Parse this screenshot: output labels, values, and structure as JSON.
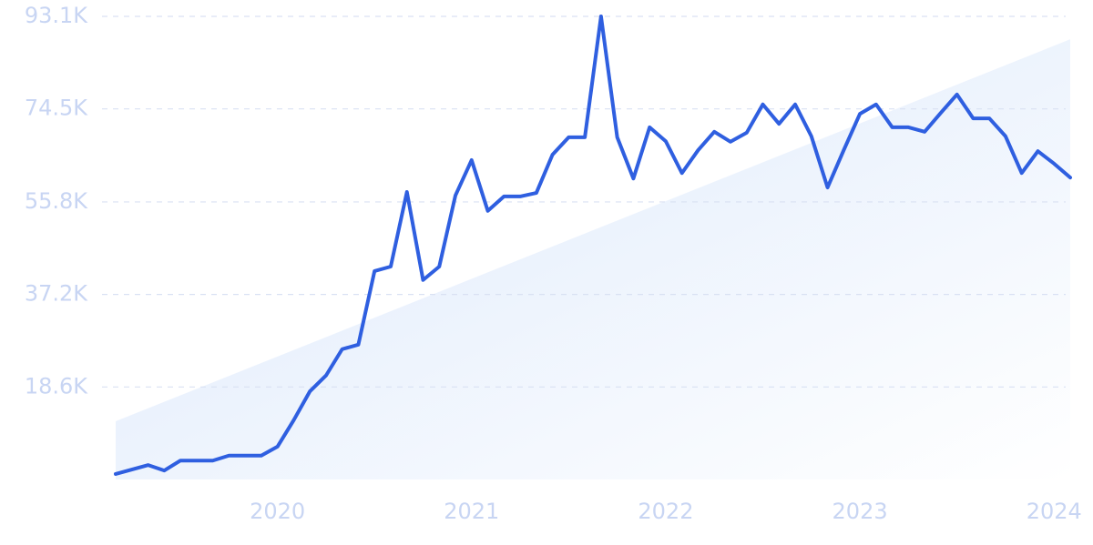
{
  "chart_data": {
    "type": "line",
    "categories": [
      null,
      null,
      null,
      null,
      null,
      null,
      null,
      null,
      null,
      null,
      "2020",
      null,
      null,
      null,
      null,
      null,
      null,
      null,
      null,
      null,
      null,
      null,
      "2021",
      null,
      null,
      null,
      null,
      null,
      null,
      null,
      null,
      null,
      null,
      null,
      "2022",
      null,
      null,
      null,
      null,
      null,
      null,
      null,
      null,
      null,
      null,
      null,
      "2023",
      null,
      null,
      null,
      null,
      null,
      null,
      null,
      null,
      null,
      null,
      null,
      "2024",
      null
    ],
    "series": [
      {
        "color": "#2f5fe0",
        "values": [
          1100,
          2000,
          2900,
          1800,
          3800,
          3800,
          3800,
          4800,
          4800,
          4800,
          6600,
          11900,
          17700,
          20900,
          26200,
          27100,
          41900,
          42800,
          57800,
          40100,
          42800,
          57100,
          64200,
          54000,
          56900,
          56900,
          57600,
          65300,
          68800,
          68800,
          93100,
          68800,
          60500,
          70800,
          68000,
          61600,
          66200,
          69900,
          67900,
          69700,
          75400,
          71500,
          75400,
          69000,
          58700,
          66200,
          73500,
          75400,
          70800,
          70800,
          69900,
          73700,
          77400,
          72600,
          72600,
          69000,
          61600,
          66000,
          63500,
          60700
        ]
      }
    ],
    "trend": {
      "values": [
        11700,
        88500
      ],
      "color": "#dbe8fb"
    },
    "ylim": [
      0,
      93100
    ],
    "yticks": [
      {
        "value": 18600,
        "label": "18.6K"
      },
      {
        "value": 37200,
        "label": "37.2K"
      },
      {
        "value": 55800,
        "label": "55.8K"
      },
      {
        "value": 74500,
        "label": "74.5K"
      },
      {
        "value": 93100,
        "label": "93.1K"
      }
    ],
    "grid": true
  }
}
